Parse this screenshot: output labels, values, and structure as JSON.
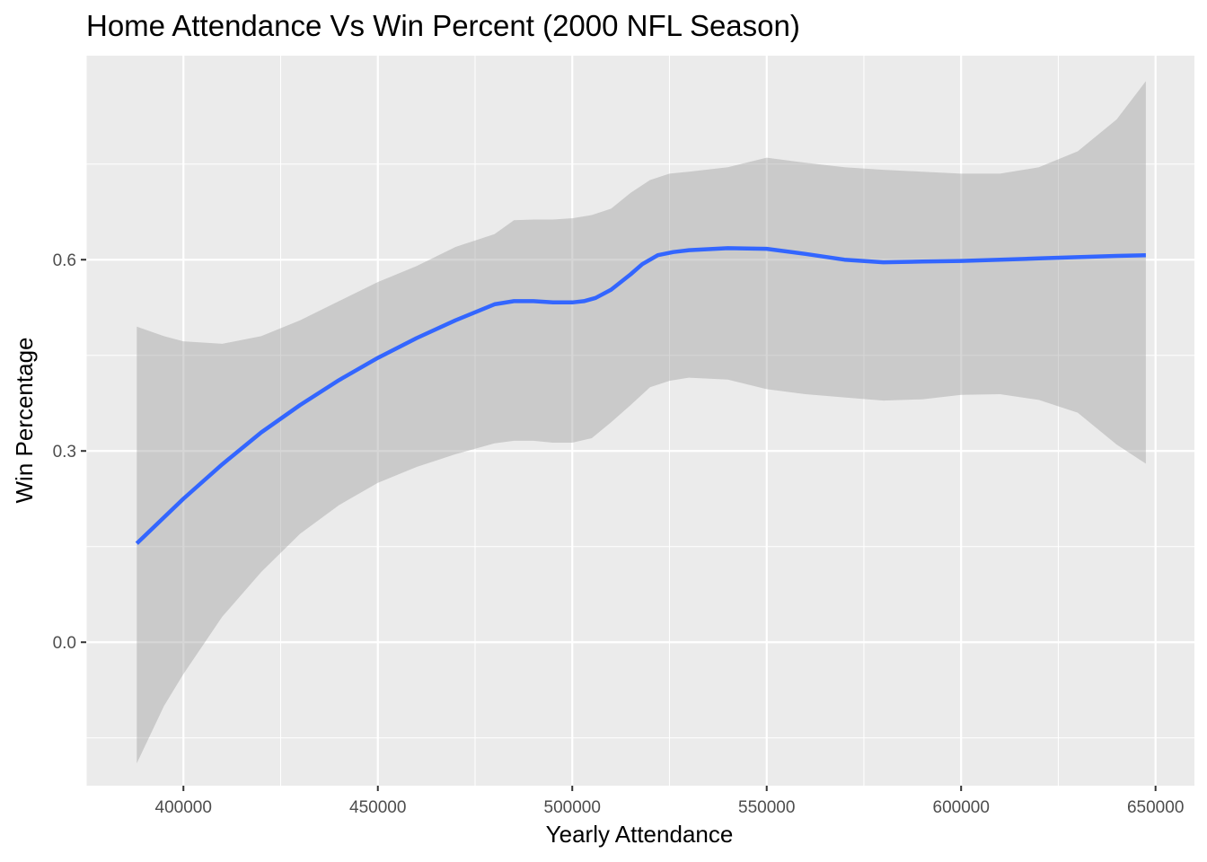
{
  "chart_data": {
    "type": "line",
    "title": "Home Attendance Vs Win Percent (2000 NFL Season)",
    "xlabel": "Yearly Attendance",
    "ylabel": "Win Percentage",
    "xlim": [
      375000,
      660000
    ],
    "ylim": [
      -0.225,
      0.92
    ],
    "x_ticks": [
      400000,
      450000,
      500000,
      550000,
      600000,
      650000
    ],
    "x_tick_labels": [
      "400000",
      "450000",
      "500000",
      "550000",
      "600000",
      "650000"
    ],
    "y_ticks": [
      0.0,
      0.3,
      0.6
    ],
    "y_tick_labels": [
      "0.0",
      "0.3",
      "0.6"
    ],
    "grid": true,
    "series": [
      {
        "type": "smooth_line",
        "color": "#3366FF",
        "x": [
          388000,
          400000,
          410000,
          420000,
          430000,
          440000,
          450000,
          460000,
          470000,
          480000,
          485000,
          490000,
          495000,
          500000,
          503000,
          506000,
          510000,
          515000,
          518000,
          522000,
          526000,
          530000,
          540000,
          550000,
          560000,
          570000,
          580000,
          590000,
          600000,
          610000,
          620000,
          630000,
          640000,
          647500
        ],
        "y": [
          0.155,
          0.225,
          0.279,
          0.329,
          0.372,
          0.411,
          0.446,
          0.477,
          0.505,
          0.53,
          0.535,
          0.535,
          0.533,
          0.533,
          0.535,
          0.54,
          0.553,
          0.577,
          0.593,
          0.607,
          0.612,
          0.615,
          0.618,
          0.617,
          0.609,
          0.6,
          0.596,
          0.597,
          0.598,
          0.6,
          0.602,
          0.604,
          0.606,
          0.607
        ]
      }
    ],
    "confidence_band": {
      "color": "#999999",
      "x": [
        388000,
        395000,
        400000,
        410000,
        420000,
        430000,
        440000,
        450000,
        460000,
        470000,
        480000,
        485000,
        490000,
        495000,
        500000,
        505000,
        510000,
        515000,
        520000,
        525000,
        530000,
        540000,
        550000,
        560000,
        570000,
        580000,
        590000,
        600000,
        610000,
        620000,
        630000,
        640000,
        647500
      ],
      "lower": [
        -0.19,
        -0.1,
        -0.05,
        0.04,
        0.11,
        0.17,
        0.215,
        0.25,
        0.275,
        0.295,
        0.312,
        0.316,
        0.316,
        0.313,
        0.313,
        0.32,
        0.345,
        0.372,
        0.4,
        0.41,
        0.415,
        0.412,
        0.397,
        0.389,
        0.384,
        0.379,
        0.381,
        0.388,
        0.389,
        0.38,
        0.36,
        0.31,
        0.28
      ],
      "upper": [
        0.495,
        0.48,
        0.472,
        0.468,
        0.48,
        0.505,
        0.535,
        0.565,
        0.59,
        0.62,
        0.64,
        0.662,
        0.663,
        0.663,
        0.665,
        0.67,
        0.68,
        0.705,
        0.725,
        0.735,
        0.738,
        0.745,
        0.76,
        0.752,
        0.745,
        0.741,
        0.738,
        0.735,
        0.735,
        0.745,
        0.77,
        0.82,
        0.88
      ]
    }
  }
}
